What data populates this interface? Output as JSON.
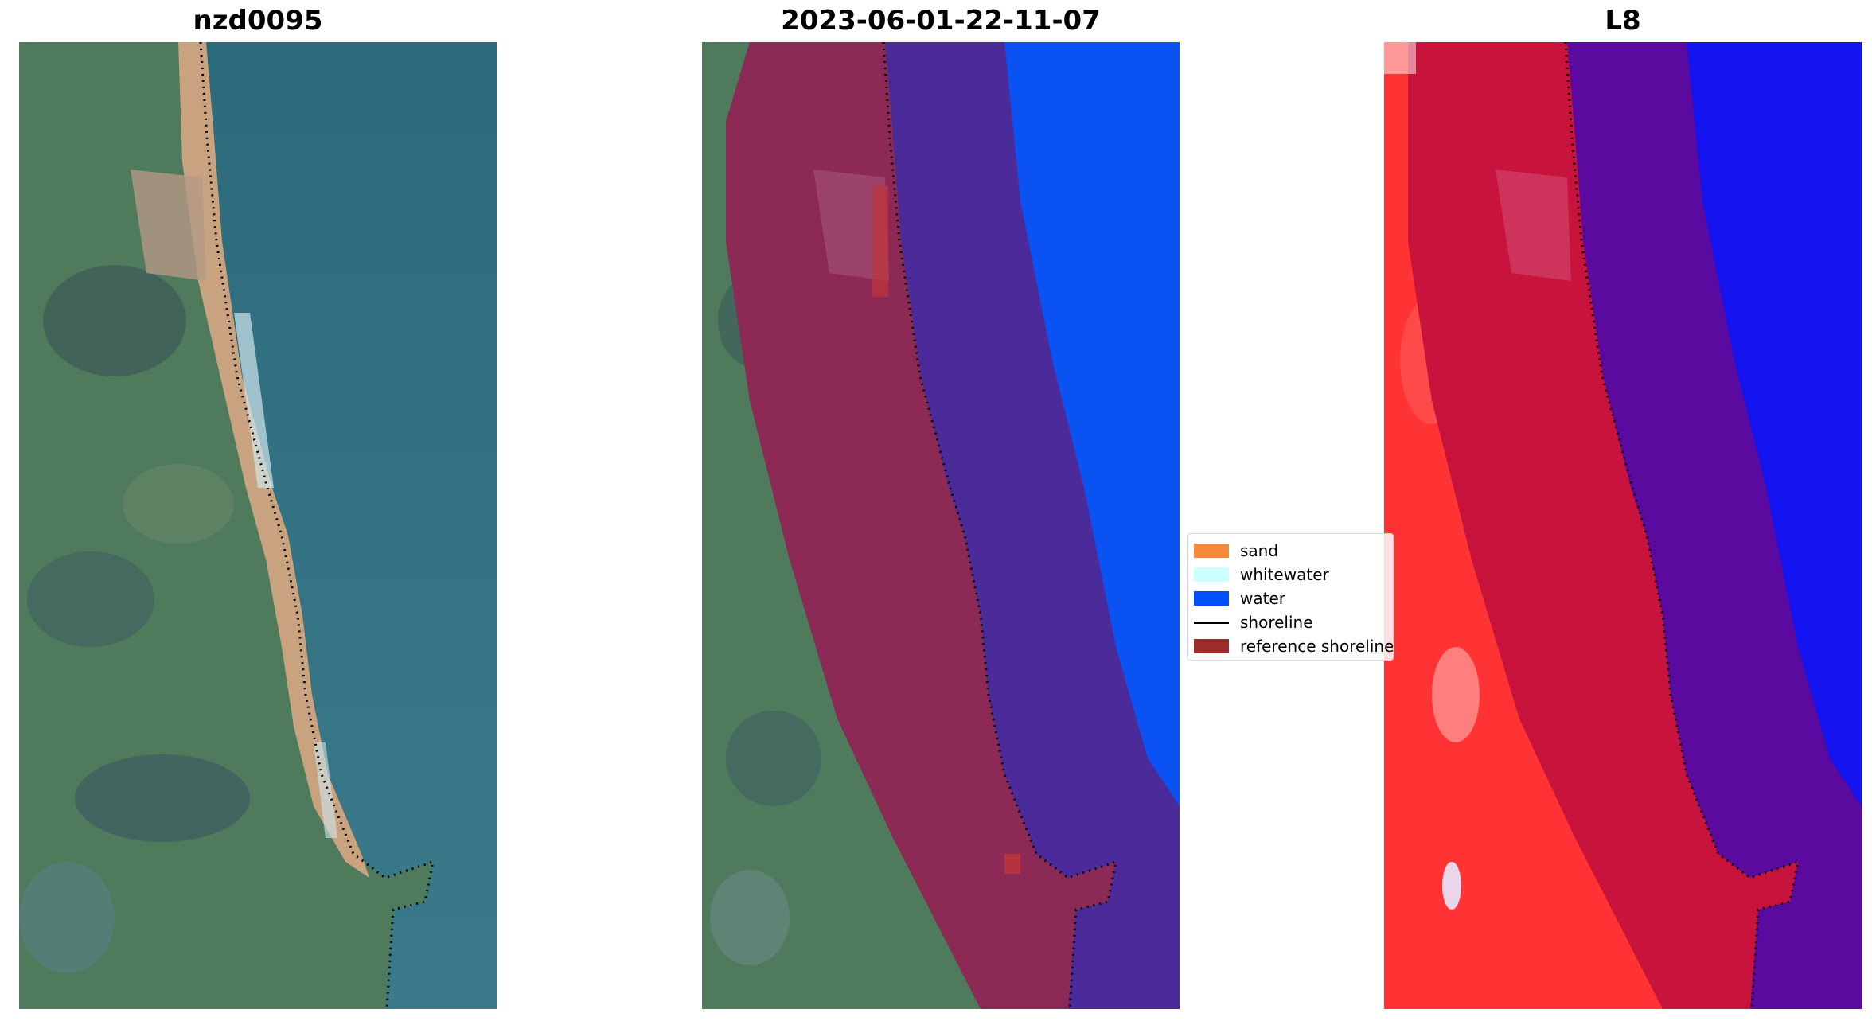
{
  "panels": [
    {
      "title": "nzd0095"
    },
    {
      "title": "2023-06-01-22-11-07"
    },
    {
      "title": "L8"
    }
  ],
  "legend": {
    "items": [
      {
        "label": "sand",
        "color": "#f5883b",
        "kind": "patch"
      },
      {
        "label": "whitewater",
        "color": "#ccffff",
        "kind": "patch"
      },
      {
        "label": "water",
        "color": "#0050ff",
        "kind": "patch"
      },
      {
        "label": "shoreline",
        "color": "#000000",
        "kind": "line"
      },
      {
        "label": "reference shoreline",
        "color": "#9b2d2d",
        "kind": "patch"
      }
    ]
  },
  "colors": {
    "land_green": "#4f7a5c",
    "sea_teal": "#2f6d7d",
    "beach_sand": "#c9a37f",
    "class_land": "#8c2a55",
    "class_sea": "#4b2a9a",
    "water_blue": "#0a52f2",
    "index_red": "#ff3333",
    "index_crimson": "#c8143c",
    "index_purple": "#5a0a9e",
    "index_blue": "#1414f0"
  }
}
